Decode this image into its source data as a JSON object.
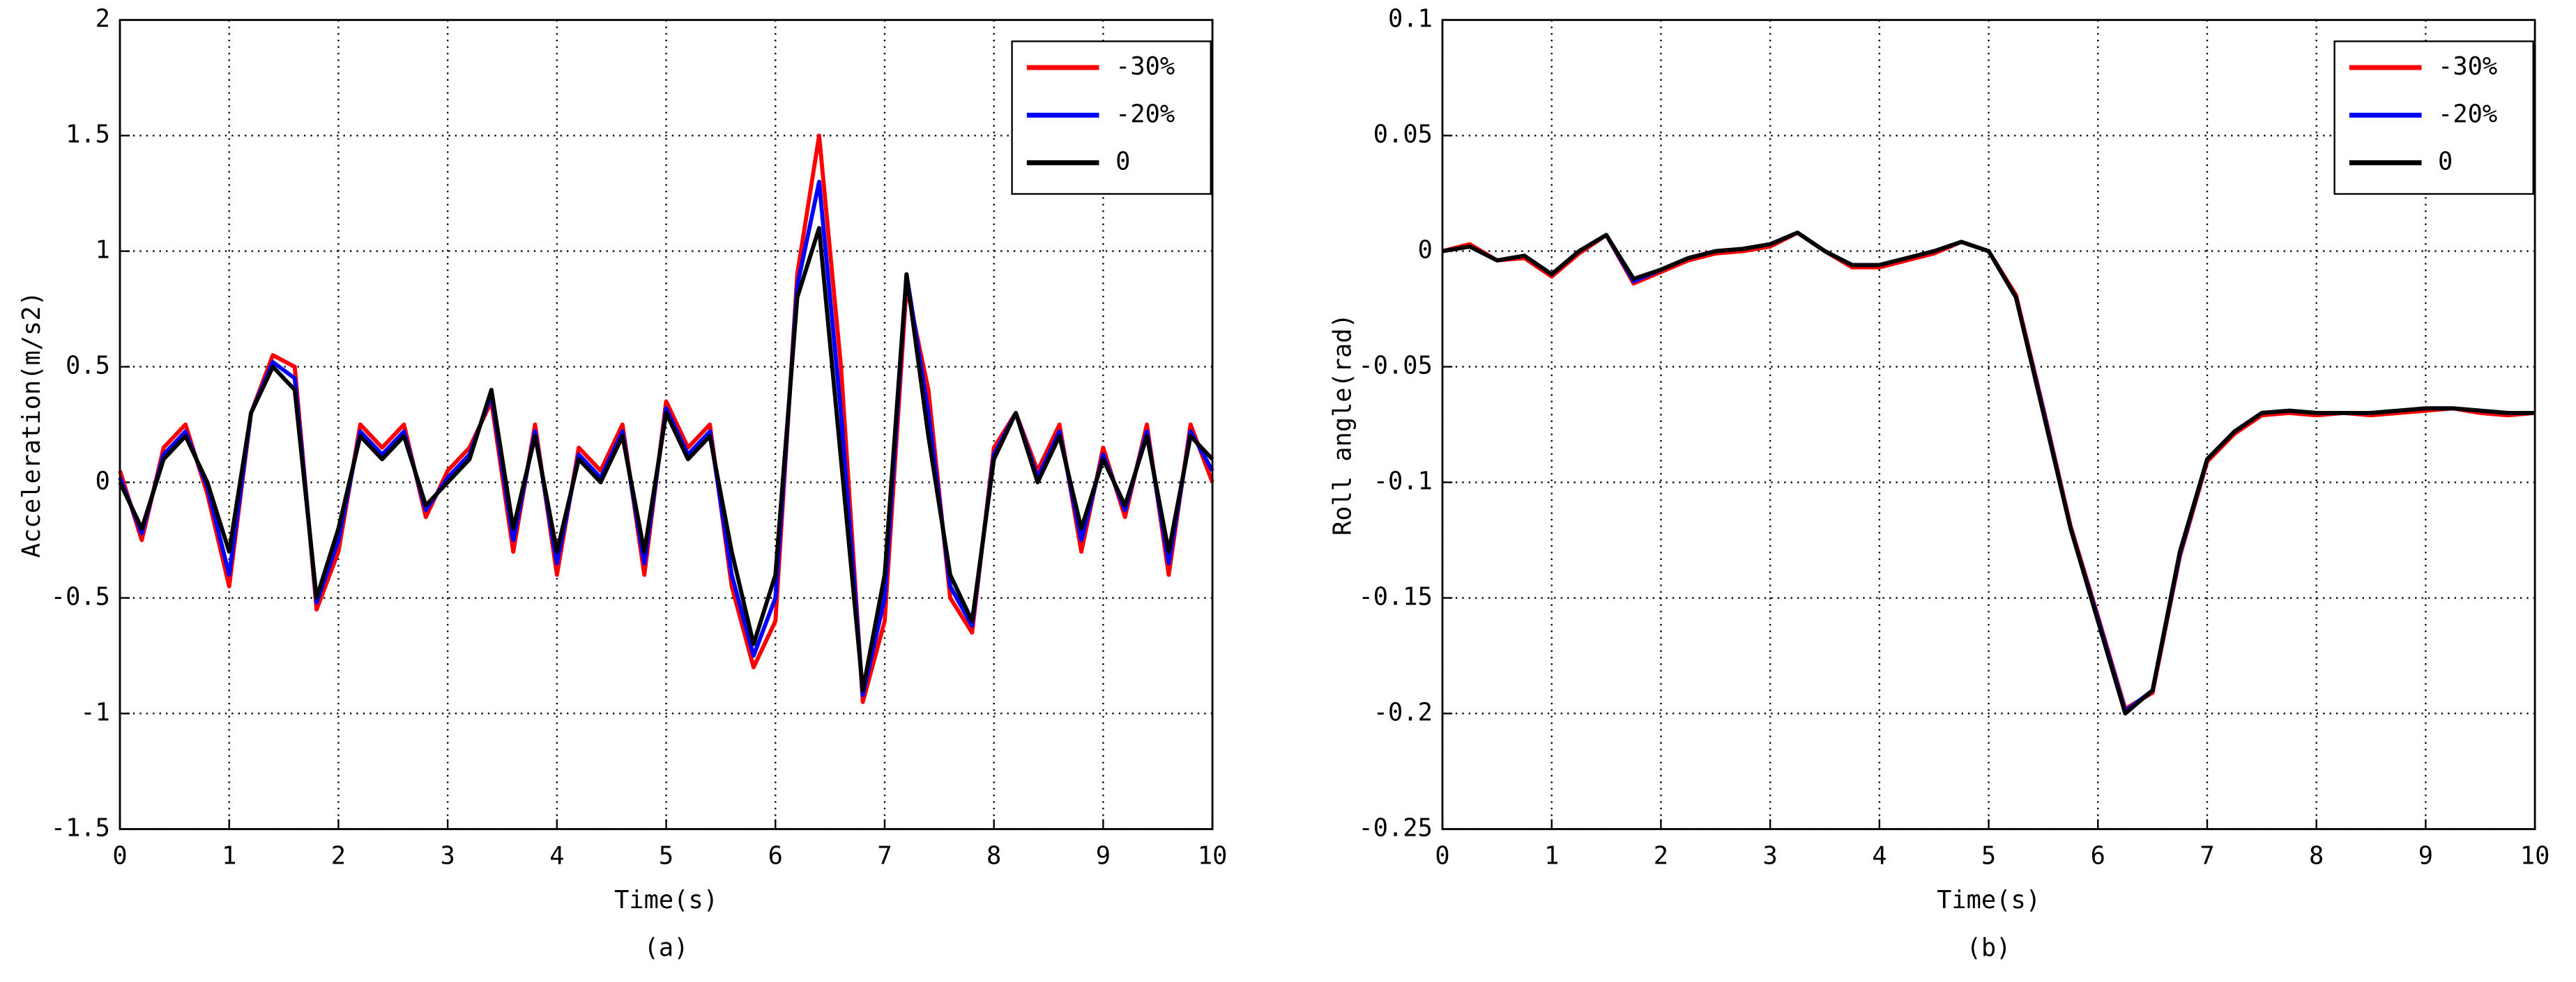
{
  "chart_data": [
    {
      "type": "line",
      "caption": "(a)",
      "x_label": "Time(s)",
      "y_label": "Acceleration(m/s2)",
      "x": [
        0,
        0.2,
        0.4,
        0.6,
        0.8,
        1,
        1.2,
        1.4,
        1.6,
        1.8,
        2,
        2.2,
        2.4,
        2.6,
        2.8,
        3,
        3.2,
        3.4,
        3.6,
        3.8,
        4,
        4.2,
        4.4,
        4.6,
        4.8,
        5,
        5.2,
        5.4,
        5.6,
        5.8,
        6,
        6.2,
        6.4,
        6.6,
        6.8,
        7,
        7.2,
        7.4,
        7.6,
        7.8,
        8,
        8.2,
        8.4,
        8.6,
        8.8,
        9,
        9.2,
        9.4,
        9.6,
        9.8,
        10
      ],
      "series": [
        {
          "name": "-30%",
          "color": "#ff0000",
          "values": [
            0.05,
            -0.25,
            0.15,
            0.25,
            -0.05,
            -0.45,
            0.3,
            0.55,
            0.5,
            -0.55,
            -0.3,
            0.25,
            0.15,
            0.25,
            -0.15,
            0.05,
            0.15,
            0.35,
            -0.3,
            0.25,
            -0.4,
            0.15,
            0.05,
            0.25,
            -0.4,
            0.35,
            0.15,
            0.25,
            -0.45,
            -0.8,
            -0.6,
            0.9,
            1.5,
            0.5,
            -0.95,
            -0.6,
            0.85,
            0.4,
            -0.5,
            -0.65,
            0.15,
            0.3,
            0.05,
            0.25,
            -0.3,
            0.15,
            -0.15,
            0.25,
            -0.4,
            0.25,
            0.0
          ]
        },
        {
          "name": "-20%",
          "color": "#0000ff",
          "values": [
            0.02,
            -0.22,
            0.12,
            0.22,
            -0.02,
            -0.4,
            0.3,
            0.52,
            0.45,
            -0.52,
            -0.25,
            0.22,
            0.12,
            0.22,
            -0.12,
            0.02,
            0.12,
            0.38,
            -0.25,
            0.22,
            -0.35,
            0.12,
            0.02,
            0.22,
            -0.35,
            0.32,
            0.12,
            0.22,
            -0.4,
            -0.75,
            -0.5,
            0.85,
            1.3,
            0.3,
            -0.92,
            -0.5,
            0.9,
            0.3,
            -0.45,
            -0.62,
            0.12,
            0.3,
            0.02,
            0.22,
            -0.25,
            0.12,
            -0.12,
            0.22,
            -0.35,
            0.22,
            0.05
          ]
        },
        {
          "name": "0",
          "color": "#000000",
          "values": [
            0,
            -0.2,
            0.1,
            0.2,
            0,
            -0.3,
            0.3,
            0.5,
            0.4,
            -0.5,
            -0.2,
            0.2,
            0.1,
            0.2,
            -0.1,
            0,
            0.1,
            0.4,
            -0.2,
            0.2,
            -0.3,
            0.1,
            0,
            0.2,
            -0.3,
            0.3,
            0.1,
            0.2,
            -0.3,
            -0.7,
            -0.4,
            0.8,
            1.1,
            0.1,
            -0.9,
            -0.4,
            0.9,
            0.2,
            -0.4,
            -0.6,
            0.1,
            0.3,
            0,
            0.2,
            -0.2,
            0.1,
            -0.1,
            0.2,
            -0.3,
            0.2,
            0.1
          ]
        }
      ],
      "xlim": [
        0,
        10
      ],
      "xticks": [
        0,
        1,
        2,
        3,
        4,
        5,
        6,
        7,
        8,
        9,
        10
      ],
      "ylim": [
        -1.5,
        2
      ],
      "yticks": [
        -1.5,
        -1,
        -0.5,
        0,
        0.5,
        1,
        1.5,
        2
      ],
      "grid": true,
      "legend": "upper right"
    },
    {
      "type": "line",
      "caption": "(b)",
      "x_label": "Time(s)",
      "y_label": "Roll angle(rad)",
      "x": [
        0,
        0.25,
        0.5,
        0.75,
        1,
        1.25,
        1.5,
        1.75,
        2,
        2.25,
        2.5,
        2.75,
        3,
        3.25,
        3.5,
        3.75,
        4,
        4.25,
        4.5,
        4.75,
        5,
        5.25,
        5.5,
        5.75,
        6,
        6.25,
        6.5,
        6.75,
        7,
        7.25,
        7.5,
        7.75,
        8,
        8.25,
        8.5,
        8.75,
        9,
        9.25,
        9.5,
        9.75,
        10
      ],
      "series": [
        {
          "name": "-30%",
          "color": "#ff0000",
          "values": [
            0,
            0.003,
            -0.004,
            -0.003,
            -0.011,
            -0.001,
            0.007,
            -0.014,
            -0.009,
            -0.004,
            -0.001,
            0,
            0.002,
            0.008,
            0,
            -0.007,
            -0.007,
            -0.004,
            -0.001,
            0.004,
            0,
            -0.019,
            -0.068,
            -0.119,
            -0.158,
            -0.198,
            -0.191,
            -0.132,
            -0.091,
            -0.079,
            -0.071,
            -0.07,
            -0.071,
            -0.07,
            -0.071,
            -0.07,
            -0.069,
            -0.068,
            -0.07,
            -0.071,
            -0.07
          ]
        },
        {
          "name": "-20%",
          "color": "#0000ff",
          "values": [
            0,
            0.002,
            -0.004,
            -0.002,
            -0.01,
            0,
            0.007,
            -0.013,
            -0.008,
            -0.003,
            0,
            0.001,
            0.003,
            0.008,
            0,
            -0.006,
            -0.006,
            -0.003,
            0,
            0.004,
            0,
            -0.02,
            -0.069,
            -0.12,
            -0.159,
            -0.199,
            -0.19,
            -0.131,
            -0.09,
            -0.078,
            -0.07,
            -0.069,
            -0.07,
            -0.07,
            -0.07,
            -0.069,
            -0.068,
            -0.068,
            -0.069,
            -0.07,
            -0.07
          ]
        },
        {
          "name": "0",
          "color": "#000000",
          "values": [
            0,
            0.002,
            -0.004,
            -0.002,
            -0.01,
            0,
            0.007,
            -0.012,
            -0.008,
            -0.003,
            0,
            0.001,
            0.003,
            0.008,
            0,
            -0.006,
            -0.006,
            -0.003,
            0,
            0.004,
            0,
            -0.02,
            -0.07,
            -0.12,
            -0.16,
            -0.2,
            -0.19,
            -0.13,
            -0.09,
            -0.078,
            -0.07,
            -0.069,
            -0.07,
            -0.07,
            -0.07,
            -0.069,
            -0.068,
            -0.068,
            -0.069,
            -0.07,
            -0.07
          ]
        }
      ],
      "xlim": [
        0,
        10
      ],
      "xticks": [
        0,
        1,
        2,
        3,
        4,
        5,
        6,
        7,
        8,
        9,
        10
      ],
      "ylim": [
        -0.25,
        0.1
      ],
      "yticks": [
        -0.25,
        -0.2,
        -0.15,
        -0.1,
        -0.05,
        0,
        0.05,
        0.1
      ],
      "grid": true,
      "legend": "upper right"
    }
  ]
}
